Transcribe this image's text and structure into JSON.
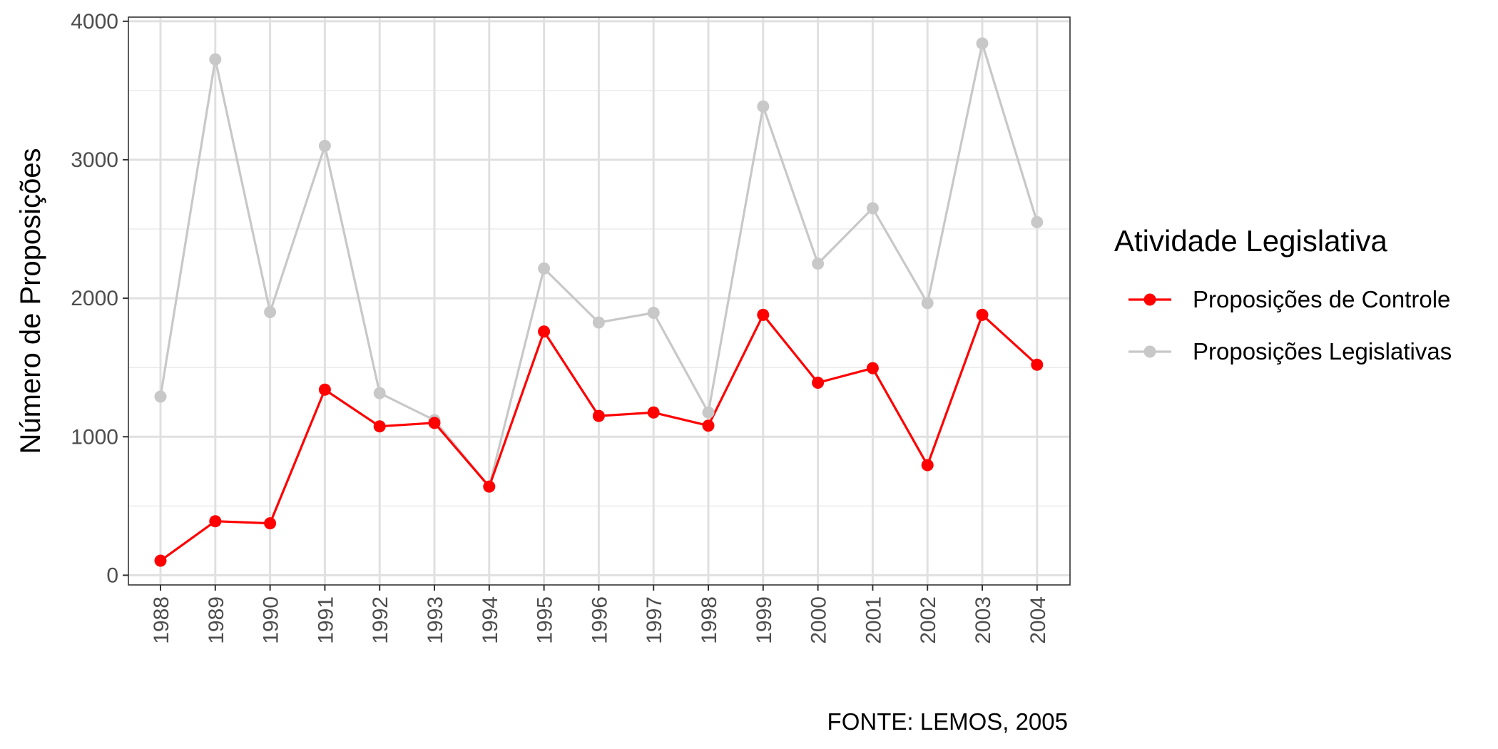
{
  "chart_data": {
    "type": "line",
    "xlabel": "",
    "ylabel": "Número de Proposições",
    "x": [
      "1988",
      "1989",
      "1990",
      "1991",
      "1992",
      "1993",
      "1994",
      "1995",
      "1996",
      "1997",
      "1998",
      "1999",
      "2000",
      "2001",
      "2002",
      "2003",
      "2004"
    ],
    "ylim": [
      -70,
      4030
    ],
    "yticks": [
      0,
      1000,
      2000,
      3000,
      4000
    ],
    "ytick_labels": [
      "0",
      "1000",
      "2000",
      "3000",
      "4000"
    ],
    "grid": true,
    "legend": {
      "title": "Atividade Legislativa",
      "position": "right"
    },
    "caption": "FONTE: LEMOS, 2005",
    "series": [
      {
        "name": "Proposições de Controle",
        "color": "#ff0000",
        "values": [
          105,
          390,
          375,
          1340,
          1075,
          1100,
          640,
          1760,
          1150,
          1175,
          1080,
          1880,
          1390,
          1495,
          795,
          1880,
          1520
        ]
      },
      {
        "name": "Proposições Legislativas",
        "color": "#c8c8c8",
        "values": [
          1290,
          3725,
          1900,
          3100,
          1315,
          1120,
          640,
          2215,
          1825,
          1895,
          1175,
          3385,
          2250,
          2650,
          1965,
          3840,
          2550
        ]
      }
    ]
  }
}
